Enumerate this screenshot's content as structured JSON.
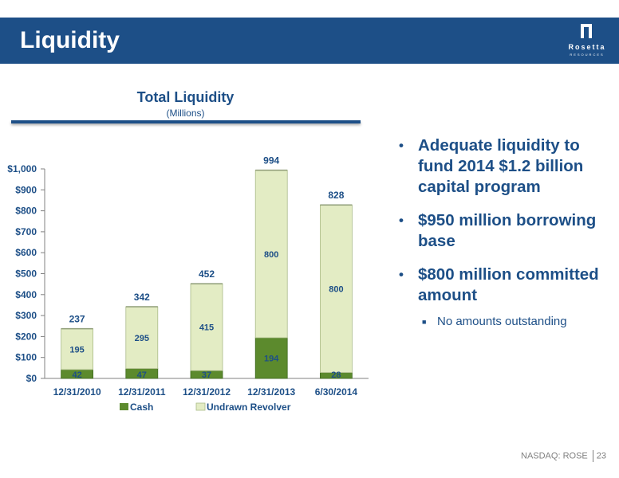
{
  "header": {
    "title": "Liquidity",
    "logo_name": "Rosetta",
    "logo_sub": "RESOURCES"
  },
  "chart_data": {
    "type": "bar",
    "stacked": true,
    "title": "Total Liquidity",
    "subtitle": "(Millions)",
    "categories": [
      "12/31/2010",
      "12/31/2011",
      "12/31/2012",
      "12/31/2013",
      "6/30/2014"
    ],
    "series": [
      {
        "name": "Cash",
        "values": [
          42,
          47,
          37,
          194,
          28
        ],
        "color": "#5c8a2d"
      },
      {
        "name": "Undrawn Revolver",
        "values": [
          195,
          295,
          415,
          800,
          800
        ],
        "color": "#e3ecc4"
      }
    ],
    "totals": [
      237,
      342,
      452,
      994,
      828
    ],
    "ylim": [
      0,
      1000
    ],
    "yticks": [
      0,
      100,
      200,
      300,
      400,
      500,
      600,
      700,
      800,
      900,
      1000
    ],
    "ytick_labels": [
      "$0",
      "$100",
      "$200",
      "$300",
      "$400",
      "$500",
      "$600",
      "$700",
      "$800",
      "$900",
      "$1,000"
    ],
    "grid": false,
    "legend_position": "bottom"
  },
  "bullets": [
    "Adequate liquidity to fund 2014 $1.2 billion capital program",
    "$950 million borrowing base",
    "$800 million committed amount"
  ],
  "sub_bullets": [
    "No amounts outstanding"
  ],
  "footer": {
    "ticker": "NASDAQ: ROSE",
    "page": "23"
  },
  "colors": {
    "brand_blue": "#1d4f87",
    "cash_green": "#5c8a2d",
    "revolver_light": "#e3ecc4",
    "cash_label": "#1d4f87"
  }
}
